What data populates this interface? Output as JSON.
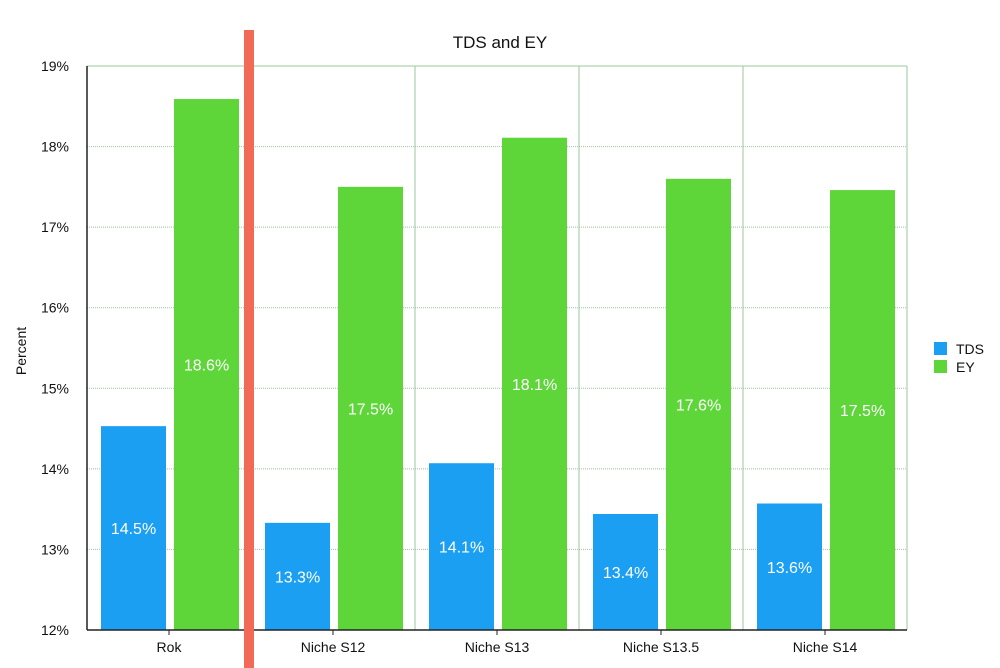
{
  "chart_data": {
    "type": "bar",
    "title": "TDS and EY",
    "xlabel": "",
    "ylabel": "Percent",
    "ylim": [
      12,
      19
    ],
    "yticks": [
      "12%",
      "13%",
      "14%",
      "15%",
      "16%",
      "17%",
      "18%",
      "19%"
    ],
    "categories": [
      "Rok",
      "Niche S12",
      "Niche S13",
      "Niche S13.5",
      "Niche S14"
    ],
    "series": [
      {
        "name": "TDS",
        "color": "#1a9ff2",
        "values": [
          14.53,
          13.33,
          14.07,
          13.44,
          13.57
        ],
        "labels": [
          "14.5%",
          "13.3%",
          "14.1%",
          "13.4%",
          "13.6%"
        ]
      },
      {
        "name": "EY",
        "color": "#5ed63a",
        "values": [
          18.59,
          17.5,
          18.11,
          17.6,
          17.46
        ],
        "labels": [
          "18.6%",
          "17.5%",
          "18.1%",
          "17.6%",
          "17.5%"
        ]
      }
    ],
    "grid": true,
    "legend": "right",
    "marker_line": {
      "after_category": "Rok",
      "color": "#f26a55"
    }
  }
}
